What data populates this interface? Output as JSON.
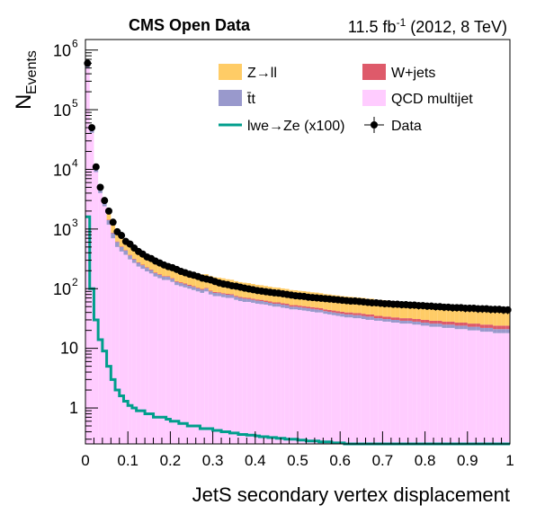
{
  "header": {
    "left": "CMS Open Data",
    "lumi_value": "11.5 fb",
    "lumi_exp": "-1",
    "lumi_rest": " (2012, 8 TeV)"
  },
  "chart_data": {
    "type": "bar",
    "stacked": true,
    "xlabel": "JetS secondary vertex displacement",
    "ylabel_main": "N",
    "ylabel_sub": "Events",
    "xlim": [
      0,
      1
    ],
    "ylim": [
      0.25,
      1500000
    ],
    "log_y": true,
    "grid": false,
    "legend_position": "top-right",
    "x_ticks": [
      "0",
      "0.1",
      "0.2",
      "0.3",
      "0.4",
      "0.5",
      "0.6",
      "0.7",
      "0.8",
      "0.9",
      "1"
    ],
    "y_ticks": [
      {
        "value": 1,
        "label": "1"
      },
      {
        "value": 10,
        "label": "10"
      },
      {
        "value": 100,
        "base": "10",
        "exp": "2"
      },
      {
        "value": 1000,
        "base": "10",
        "exp": "3"
      },
      {
        "value": 10000,
        "base": "10",
        "exp": "4"
      },
      {
        "value": 100000,
        "base": "10",
        "exp": "5"
      },
      {
        "value": 1000000,
        "base": "10",
        "exp": "6"
      }
    ],
    "bins": [
      0.0,
      0.01,
      0.02,
      0.03,
      0.04,
      0.05,
      0.06,
      0.07,
      0.08,
      0.09,
      0.1,
      0.11,
      0.12,
      0.13,
      0.14,
      0.15,
      0.16,
      0.17,
      0.18,
      0.19,
      0.2,
      0.21,
      0.22,
      0.23,
      0.24,
      0.25,
      0.26,
      0.27,
      0.28,
      0.29,
      0.3,
      0.31,
      0.32,
      0.33,
      0.34,
      0.35,
      0.36,
      0.37,
      0.38,
      0.39,
      0.4,
      0.41,
      0.42,
      0.43,
      0.44,
      0.45,
      0.46,
      0.47,
      0.48,
      0.49,
      0.5,
      0.51,
      0.52,
      0.53,
      0.54,
      0.55,
      0.56,
      0.57,
      0.58,
      0.59,
      0.6,
      0.61,
      0.62,
      0.63,
      0.64,
      0.65,
      0.66,
      0.67,
      0.68,
      0.69,
      0.7,
      0.71,
      0.72,
      0.73,
      0.74,
      0.75,
      0.76,
      0.77,
      0.78,
      0.79,
      0.8,
      0.81,
      0.82,
      0.83,
      0.84,
      0.85,
      0.86,
      0.87,
      0.88,
      0.89,
      0.9,
      0.91,
      0.92,
      0.93,
      0.94,
      0.95,
      0.96,
      0.97,
      0.98,
      0.99
    ],
    "bin_width": 0.01,
    "series": [
      {
        "name": "QCD multijet",
        "color": "#ffccff",
        "values": [
          500000,
          41000,
          9000,
          4000,
          2400,
          1180,
          700,
          500,
          420,
          370,
          310,
          270,
          235,
          215,
          195,
          180,
          160,
          150,
          140,
          140,
          130,
          115,
          110,
          105,
          100,
          95,
          90,
          85,
          90,
          80,
          75,
          75,
          72,
          70,
          70,
          65,
          62,
          60,
          60,
          58,
          56,
          55,
          54,
          52,
          50,
          50,
          48,
          47,
          45,
          45,
          44,
          43,
          42,
          41,
          40,
          40,
          38,
          37,
          36,
          35,
          34,
          33,
          33,
          32,
          32,
          31,
          30,
          30,
          29,
          29,
          28,
          28,
          27,
          27,
          26,
          26,
          26,
          25,
          25,
          24,
          24,
          23,
          23,
          23,
          22,
          22,
          22,
          21,
          21,
          21,
          20,
          20,
          20,
          19,
          19,
          19,
          18,
          18,
          18,
          18
        ]
      },
      {
        "name": "t̄t",
        "color": "#9999cc",
        "values": [
          100000,
          5000,
          1500,
          700,
          400,
          230,
          150,
          105,
          80,
          65,
          50,
          40,
          36,
          32,
          28,
          25,
          22,
          20,
          19,
          18,
          16,
          15,
          14,
          13,
          12,
          12,
          11,
          11,
          10,
          10,
          10,
          9,
          9,
          9,
          8,
          8,
          8,
          8,
          7,
          7,
          7,
          7,
          6,
          6,
          6,
          6,
          6,
          6,
          5,
          5,
          5,
          5,
          5,
          5,
          5,
          4,
          4,
          4,
          4,
          4,
          4,
          4,
          4,
          4,
          4,
          4,
          4,
          4,
          3,
          3,
          3,
          3,
          3,
          3,
          3,
          3,
          3,
          3,
          3,
          3,
          3,
          3,
          3,
          3,
          3,
          3,
          3,
          3,
          3,
          3,
          3,
          3,
          3,
          3,
          3,
          3,
          3,
          3,
          3,
          3
        ]
      },
      {
        "name": "W+jets",
        "color": "#de5a6a",
        "values": [
          2000,
          400,
          120,
          60,
          40,
          25,
          18,
          14,
          12,
          10,
          9,
          8,
          7,
          6,
          6,
          5,
          5,
          5,
          4,
          4,
          4,
          4,
          4,
          4,
          4,
          3,
          3,
          3,
          3,
          3,
          3,
          3,
          3,
          3,
          3,
          3,
          3,
          3,
          3,
          3,
          3,
          3,
          3,
          3,
          3,
          3,
          3,
          3,
          3,
          3,
          3,
          3,
          3,
          3,
          3,
          3,
          3,
          3,
          3,
          3,
          3,
          3,
          3,
          3,
          3,
          3,
          3,
          3,
          3,
          3,
          3,
          3,
          3,
          3,
          3,
          3,
          3,
          3,
          3,
          3,
          3,
          3,
          3,
          3,
          3,
          3,
          3,
          3,
          3,
          3,
          3,
          3,
          3,
          3,
          3,
          3,
          3,
          3,
          3,
          3
        ]
      },
      {
        "name": "Z→ll",
        "color": "#ffcc66",
        "values": [
          30000,
          3000,
          1100,
          600,
          450,
          380,
          330,
          270,
          240,
          220,
          200,
          185,
          170,
          150,
          140,
          130,
          120,
          115,
          110,
          100,
          95,
          92,
          90,
          85,
          82,
          80,
          78,
          75,
          72,
          70,
          68,
          66,
          65,
          62,
          60,
          58,
          56,
          55,
          54,
          52,
          50,
          49,
          48,
          47,
          46,
          45,
          44,
          43,
          42,
          41,
          40,
          40,
          39,
          38,
          38,
          37,
          36,
          36,
          35,
          35,
          34,
          34,
          33,
          33,
          32,
          32,
          31,
          31,
          30,
          30,
          30,
          29,
          29,
          28,
          28,
          28,
          27,
          27,
          27,
          26,
          26,
          26,
          25,
          25,
          25,
          25,
          24,
          24,
          24,
          24,
          23,
          23,
          23,
          23,
          22,
          22,
          22,
          22,
          21,
          21
        ]
      }
    ],
    "signal": {
      "name": "lwe→Ze (x100)",
      "color": "#009e8c",
      "values": [
        1600,
        100,
        30,
        14,
        9,
        5,
        3,
        2,
        1.6,
        1.3,
        1.1,
        1,
        0.9,
        0.9,
        0.8,
        0.8,
        0.7,
        0.7,
        0.7,
        0.65,
        0.6,
        0.6,
        0.55,
        0.55,
        0.5,
        0.5,
        0.5,
        0.45,
        0.45,
        0.45,
        0.42,
        0.42,
        0.4,
        0.4,
        0.38,
        0.38,
        0.36,
        0.36,
        0.35,
        0.35,
        0.34,
        0.33,
        0.33,
        0.32,
        0.32,
        0.31,
        0.31,
        0.3,
        0.3,
        0.3,
        0.29,
        0.29,
        0.28,
        0.28,
        0.28,
        0.27,
        0.27,
        0.27,
        0.26,
        0.26,
        0.26,
        0.25,
        0.25,
        0.25,
        0.25,
        0.24,
        0.24,
        0.24,
        0.24,
        0.23,
        0.23,
        0.23,
        0.23,
        0.22,
        0.22,
        0.22,
        0.22,
        0.22,
        0.21,
        0.21,
        0.21,
        0.21,
        0.21,
        0.2,
        0.2,
        0.2,
        0.2,
        0.2,
        0.2,
        0.19,
        0.19,
        0.19,
        0.19,
        0.19,
        0.19,
        0.18,
        0.18,
        0.18,
        0.18,
        0.18
      ]
    },
    "data_points": {
      "name": "Data",
      "color": "#000000",
      "values": [
        600000,
        50000,
        11000,
        5000,
        3000,
        2000,
        1300,
        900,
        780,
        620,
        560,
        480,
        420,
        380,
        340,
        320,
        290,
        270,
        250,
        235,
        225,
        210,
        195,
        185,
        175,
        168,
        160,
        150,
        145,
        140,
        132,
        125,
        120,
        117,
        112,
        110,
        106,
        102,
        99,
        96,
        93,
        91,
        89,
        87,
        85,
        84,
        82,
        80,
        78,
        76,
        75,
        74,
        72,
        71,
        70,
        69,
        68,
        67,
        66,
        65,
        64,
        63,
        62,
        62,
        61,
        60,
        59,
        58,
        58,
        57,
        56,
        56,
        55,
        55,
        54,
        54,
        53,
        53,
        52,
        52,
        51,
        51,
        50,
        50,
        49,
        49,
        48,
        48,
        48,
        47,
        47,
        47,
        46,
        46,
        46,
        45,
        45,
        45,
        44,
        44
      ]
    },
    "legend": [
      {
        "label": "Z→ll",
        "type": "fill",
        "color": "#ffcc66"
      },
      {
        "label": "W+jets",
        "type": "fill",
        "color": "#de5a6a"
      },
      {
        "label": "t̄t",
        "type": "fill",
        "color": "#9999cc"
      },
      {
        "label": "QCD multijet",
        "type": "fill",
        "color": "#ffccff"
      },
      {
        "label": "lwe→Ze (x100)",
        "type": "line",
        "color": "#009e8c"
      },
      {
        "label": "Data",
        "type": "marker",
        "color": "#000000"
      }
    ]
  }
}
